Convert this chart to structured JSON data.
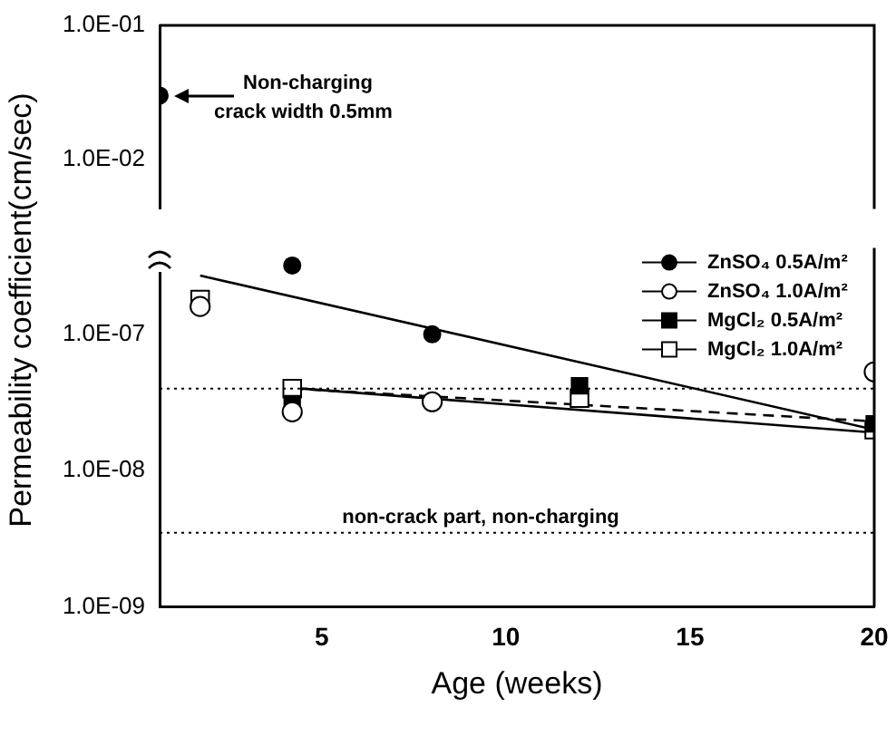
{
  "chart_data": [
    {
      "type": "scatter",
      "xlim": [
        0.6,
        20
      ],
      "xticks": [
        5,
        10,
        15,
        20
      ],
      "ylim": [
        0.0043,
        0.1
      ],
      "log": "y",
      "yticks": [
        {
          "value": 0.01,
          "label": "1.0E-02"
        },
        {
          "value": 0.1,
          "label": "1.0E-01"
        }
      ],
      "tick_labels": "y",
      "series": [
        {
          "color": "#000000",
          "marker": "circle",
          "x": [
            0.6
          ],
          "values": [
            0.03
          ]
        }
      ],
      "annotations": [
        {
          "text": "Non-charging crack width 0.5mm",
          "x": 0.6,
          "y": 0.03
        }
      ]
    },
    {
      "type": "scatter",
      "xlabel": "Age (weeks)",
      "ylabel": "Permeability coefficient(cm/sec)",
      "xlim": [
        0.6,
        20
      ],
      "xticks": [
        5,
        10,
        15,
        20
      ],
      "ylim": [
        1e-09,
        4.3e-07
      ],
      "log": "y",
      "yticks": [
        {
          "value": 1e-09,
          "label": "1.0E-09"
        },
        {
          "value": 1e-08,
          "label": "1.0E-08"
        },
        {
          "value": 1e-07,
          "label": "1.0E-07"
        }
      ],
      "legend": "top right",
      "series": [
        {
          "name": "ZnSO₄ 0.5A/m²",
          "color": "#000000",
          "marker": "circle",
          "x": [
            4.2,
            8
          ],
          "values": [
            3.2e-07,
            1e-07
          ]
        },
        {
          "name": "ZnSO₄ 1.0A/m²",
          "color": "#ffffff",
          "marker": "circle",
          "x": [
            1.7,
            4.2,
            8,
            20
          ],
          "values": [
            1.6e-07,
            2.7e-08,
            3.2e-08,
            5.3e-08
          ]
        },
        {
          "name": "MgCl₂ 0.5A/m²",
          "color": "#000000",
          "marker": "square",
          "x": [
            4.2,
            12,
            20
          ],
          "values": [
            3.1e-08,
            4.2e-08,
            2.2e-08
          ]
        },
        {
          "name": "MgCl₂ 1.0A/m²",
          "color": "#ffffff",
          "marker": "square",
          "x": [
            1.7,
            4.2,
            12,
            20
          ],
          "values": [
            1.8e-07,
            4e-08,
            3.4e-08,
            2e-08
          ]
        },
        {
          "type": "line",
          "color": "#000000",
          "line_style": "solid",
          "x": [
            1.7,
            20
          ],
          "values": [
            2.7e-07,
            2e-08
          ]
        },
        {
          "type": "line",
          "color": "#000000",
          "line_style": "solid",
          "x": [
            4.2,
            20
          ],
          "values": [
            4.05e-08,
            1.9e-08
          ]
        },
        {
          "type": "line",
          "color": "#000000",
          "line_style": "dashed",
          "x": [
            4.2,
            20
          ],
          "values": [
            4e-08,
            2.3e-08
          ]
        }
      ],
      "ref_lines": [
        {
          "axis": "y",
          "value": 4e-08,
          "line_style": "dotted"
        },
        {
          "axis": "y",
          "value": 3.5e-09,
          "label": "non-crack part, non-charging",
          "line_style": "dotted"
        }
      ]
    }
  ]
}
